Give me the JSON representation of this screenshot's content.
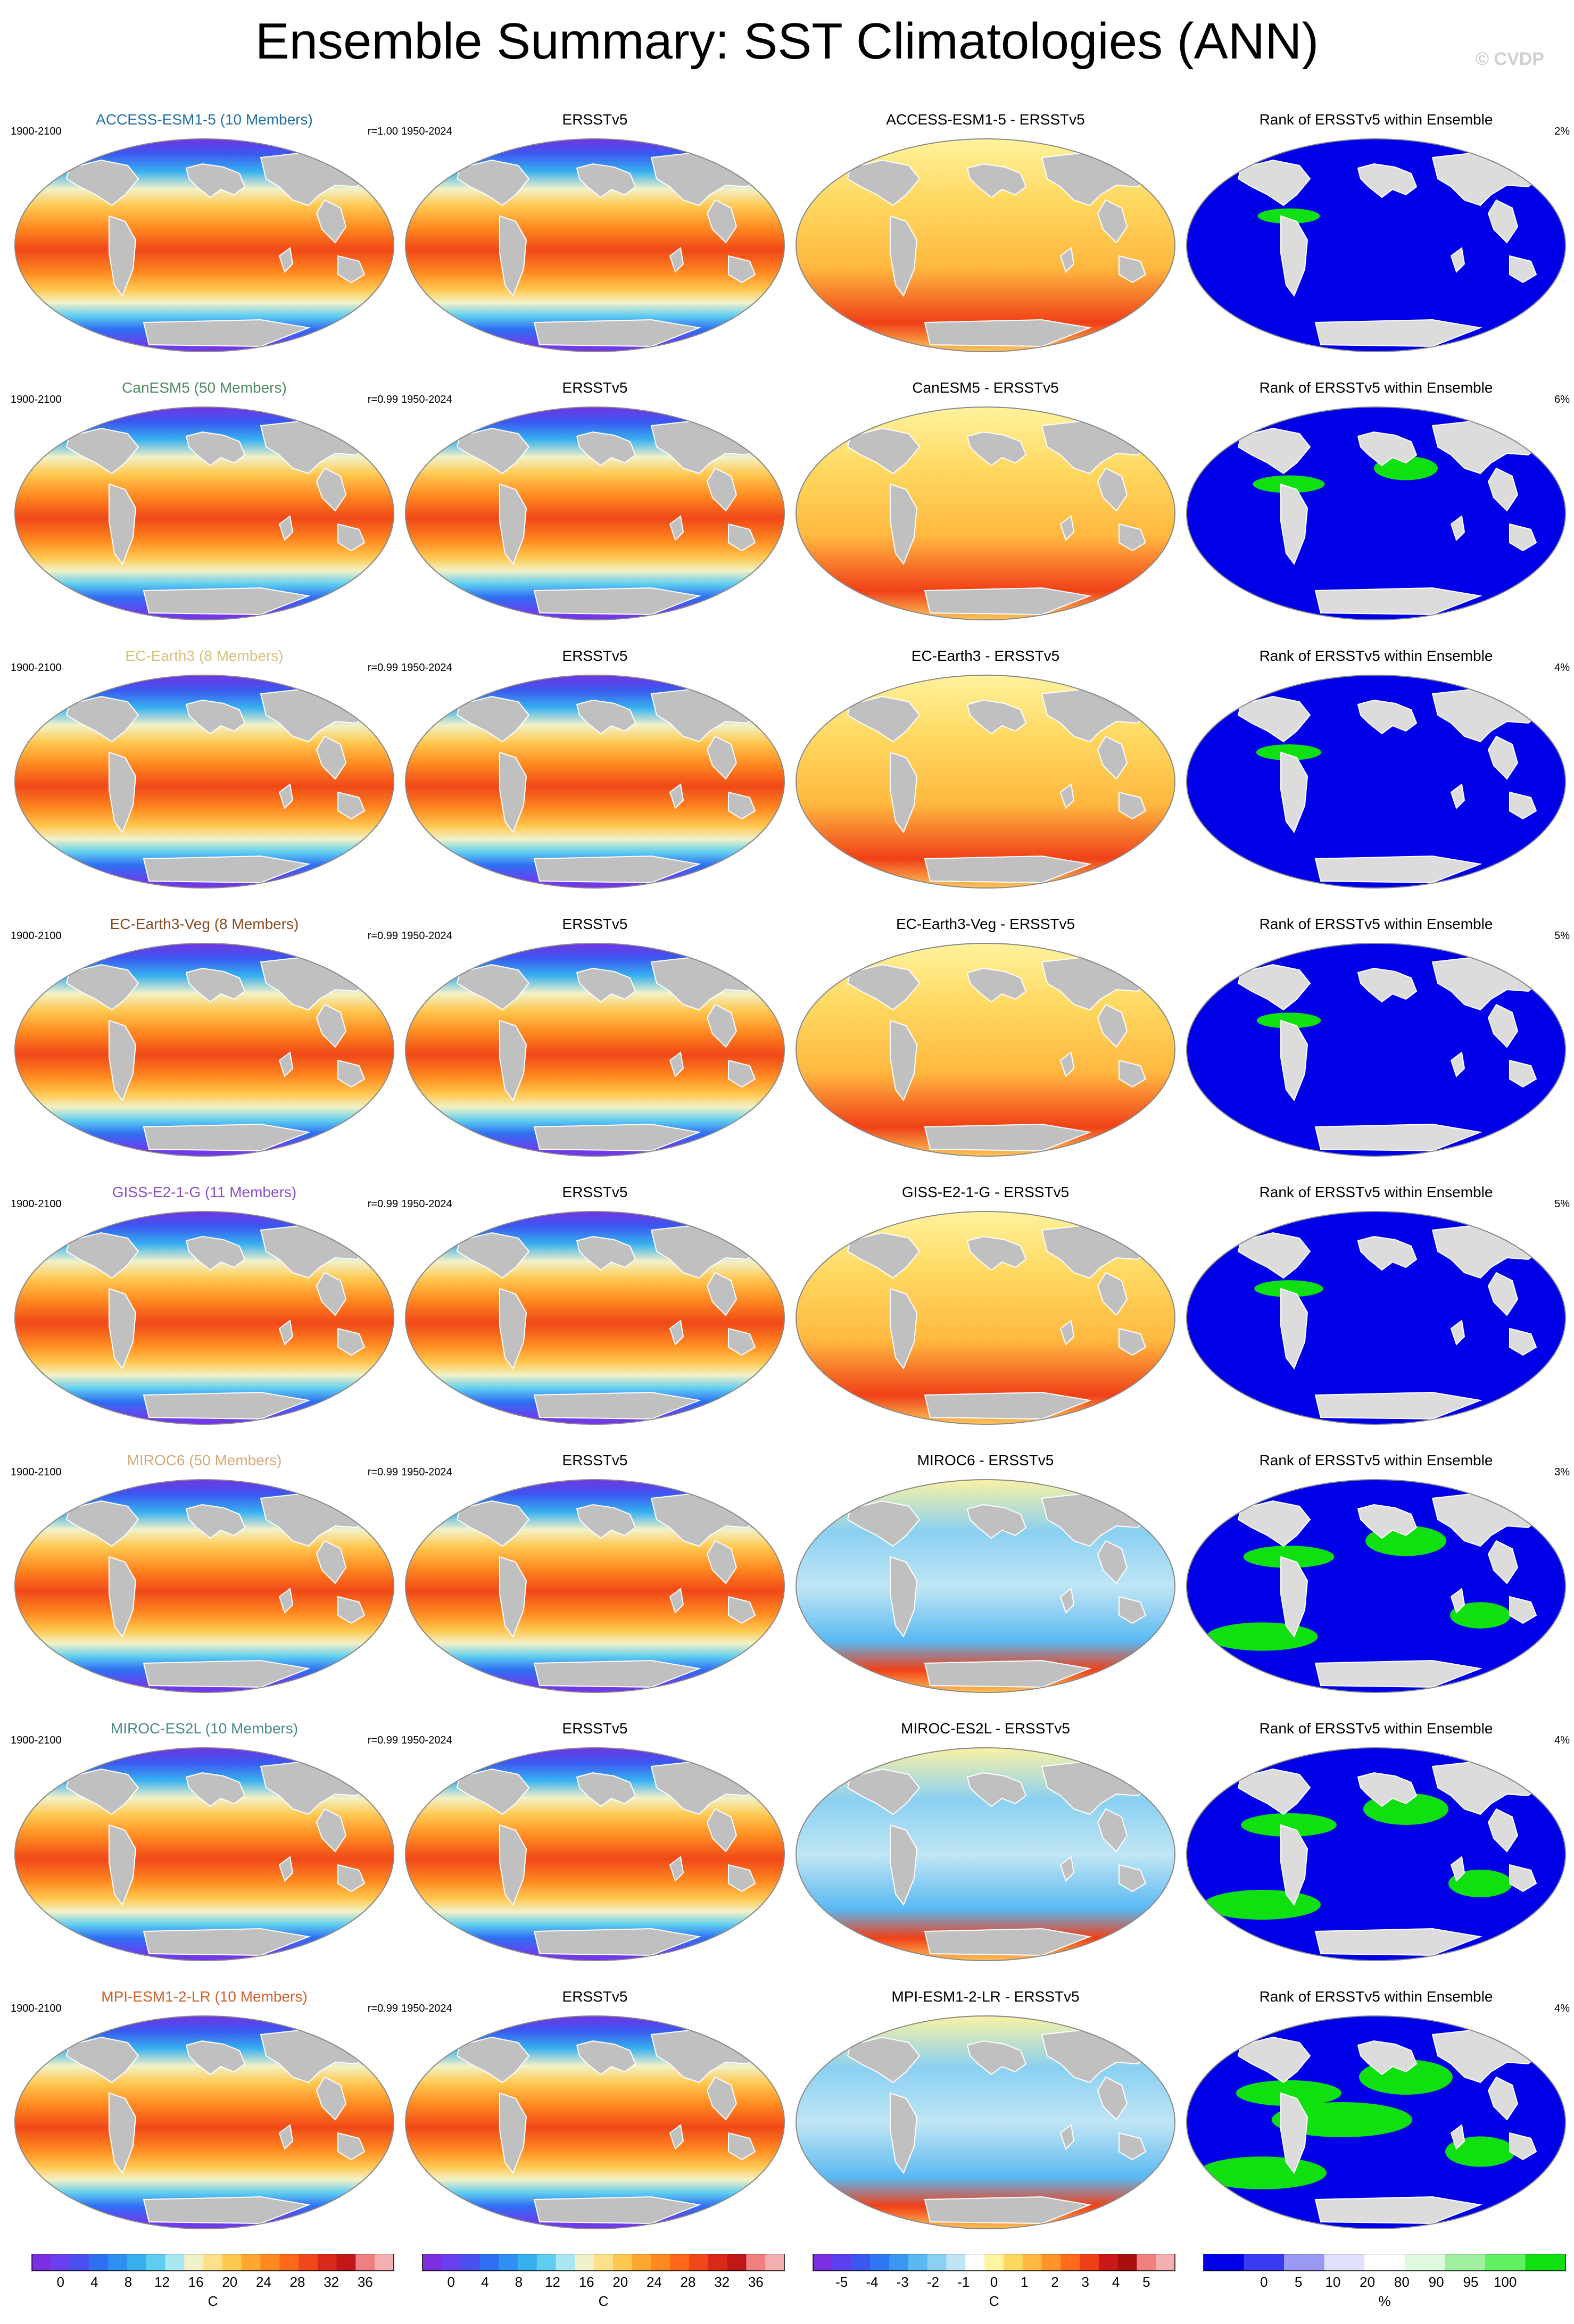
{
  "title": "Ensemble Summary: SST Climatologies (ANN)",
  "watermark": "© CVDP",
  "rows": [
    {
      "model_title": "ACCESS-ESM1-5 (10 Members)",
      "model_color": "#1f6fa8",
      "model_years": "1900-2100",
      "corr": "r=1.00",
      "obs_years": "1950-2024",
      "obs_title": "ERSSTv5",
      "diff_title": "ACCESS-ESM1-5 - ERSSTv5",
      "rank_title": "Rank of ERSSTv5 within Ensemble",
      "rank_pct": "2%",
      "diff_bias": 1.0,
      "rank_green_fraction": 0.05
    },
    {
      "model_title": "CanESM5 (50 Members)",
      "model_color": "#4f8b5d",
      "model_years": "1900-2100",
      "corr": "r=0.99",
      "obs_years": "1950-2024",
      "obs_title": "ERSSTv5",
      "diff_title": "CanESM5 - ERSSTv5",
      "rank_title": "Rank of ERSSTv5 within Ensemble",
      "rank_pct": "6%",
      "diff_bias": 0.6,
      "rank_green_fraction": 0.15
    },
    {
      "model_title": "EC-Earth3 (8 Members)",
      "model_color": "#d6c27a",
      "model_years": "1900-2100",
      "corr": "r=0.99",
      "obs_years": "1950-2024",
      "obs_title": "ERSSTv5",
      "diff_title": "EC-Earth3 - ERSSTv5",
      "rank_title": "Rank of ERSSTv5 within Ensemble",
      "rank_pct": "4%",
      "diff_bias": 1.2,
      "rank_green_fraction": 0.08
    },
    {
      "model_title": "EC-Earth3-Veg (8 Members)",
      "model_color": "#8b4a1e",
      "model_years": "1900-2100",
      "corr": "r=0.99",
      "obs_years": "1950-2024",
      "obs_title": "ERSSTv5",
      "diff_title": "EC-Earth3-Veg - ERSSTv5",
      "rank_title": "Rank of ERSSTv5 within Ensemble",
      "rank_pct": "5%",
      "diff_bias": 1.1,
      "rank_green_fraction": 0.07
    },
    {
      "model_title": "GISS-E2-1-G (11 Members)",
      "model_color": "#8c4fd0",
      "model_years": "1900-2100",
      "corr": "r=0.99",
      "obs_years": "1950-2024",
      "obs_title": "ERSSTv5",
      "diff_title": "GISS-E2-1-G - ERSSTv5",
      "rank_title": "Rank of ERSSTv5 within Ensemble",
      "rank_pct": "5%",
      "diff_bias": 0.5,
      "rank_green_fraction": 0.12
    },
    {
      "model_title": "MIROC6 (50 Members)",
      "model_color": "#d8a878",
      "model_years": "1900-2100",
      "corr": "r=0.99",
      "obs_years": "1950-2024",
      "obs_title": "ERSSTv5",
      "diff_title": "MIROC6 - ERSSTv5",
      "rank_title": "Rank of ERSSTv5 within Ensemble",
      "rank_pct": "3%",
      "diff_bias": -0.4,
      "rank_green_fraction": 0.35
    },
    {
      "model_title": "MIROC-ES2L (10 Members)",
      "model_color": "#4b8a8a",
      "model_years": "1900-2100",
      "corr": "r=0.99",
      "obs_years": "1950-2024",
      "obs_title": "ERSSTv5",
      "diff_title": "MIROC-ES2L - ERSSTv5",
      "rank_title": "Rank of ERSSTv5 within Ensemble",
      "rank_pct": "4%",
      "diff_bias": -0.6,
      "rank_green_fraction": 0.4
    },
    {
      "model_title": "MPI-ESM1-2-LR (10 Members)",
      "model_color": "#d0602e",
      "model_years": "1900-2100",
      "corr": "r=0.99",
      "obs_years": "1950-2024",
      "obs_title": "ERSSTv5",
      "diff_title": "MPI-ESM1-2-LR - ERSSTv5",
      "rank_title": "Rank of ERSSTv5 within Ensemble",
      "rank_pct": "4%",
      "diff_bias": -0.8,
      "rank_green_fraction": 0.5
    }
  ],
  "colorbars": [
    {
      "unit": "C",
      "ticks": [
        "0",
        "4",
        "8",
        "12",
        "16",
        "20",
        "24",
        "28",
        "32",
        "36"
      ],
      "colors": [
        "#7b2fe0",
        "#6a3ff0",
        "#4a50f0",
        "#2f6ff2",
        "#2f90f2",
        "#37b0f0",
        "#5ecdf0",
        "#a8e6f2",
        "#f2f2c8",
        "#ffe08a",
        "#ffc850",
        "#ffa830",
        "#ff8820",
        "#ff6818",
        "#f04818",
        "#d82818",
        "#c01818",
        "#f08080",
        "#f4b0b0"
      ]
    },
    {
      "unit": "C",
      "ticks": [
        "0",
        "4",
        "8",
        "12",
        "16",
        "20",
        "24",
        "28",
        "32",
        "36"
      ],
      "colors": [
        "#7b2fe0",
        "#6a3ff0",
        "#4a50f0",
        "#2f6ff2",
        "#2f90f2",
        "#37b0f0",
        "#5ecdf0",
        "#a8e6f2",
        "#f2f2c8",
        "#ffe08a",
        "#ffc850",
        "#ffa830",
        "#ff8820",
        "#ff6818",
        "#f04818",
        "#d82818",
        "#c01818",
        "#f08080",
        "#f4b0b0"
      ]
    },
    {
      "unit": "C",
      "ticks": [
        "-5",
        "-4",
        "-3",
        "-2",
        "-1",
        "0",
        "1",
        "2",
        "3",
        "4",
        "5"
      ],
      "colors": [
        "#7b2fe0",
        "#5a3ff0",
        "#3a58f0",
        "#2f78f2",
        "#3a98f2",
        "#5ab8f2",
        "#8ad0f2",
        "#c0e6f4",
        "#ffffff",
        "#fff4a0",
        "#ffd860",
        "#ffb840",
        "#ff9428",
        "#ff6a1c",
        "#f04018",
        "#c81818",
        "#a81010",
        "#f08080",
        "#f4b0b0"
      ]
    },
    {
      "unit": "%",
      "ticks": [
        "0",
        "5",
        "10",
        "20",
        "80",
        "90",
        "95",
        "100"
      ],
      "colors": [
        "#0000e8",
        "#3a3af0",
        "#9a9af4",
        "#e0e0fa",
        "#ffffff",
        "#e0fae0",
        "#a0f0a0",
        "#60f060",
        "#10e010"
      ]
    }
  ],
  "colors": {
    "land": "#c0c0c0",
    "rank_blue": "#0000e8",
    "rank_green": "#10e010",
    "rank_land": "#dcdcdc",
    "ocean_outline": "#888888"
  }
}
